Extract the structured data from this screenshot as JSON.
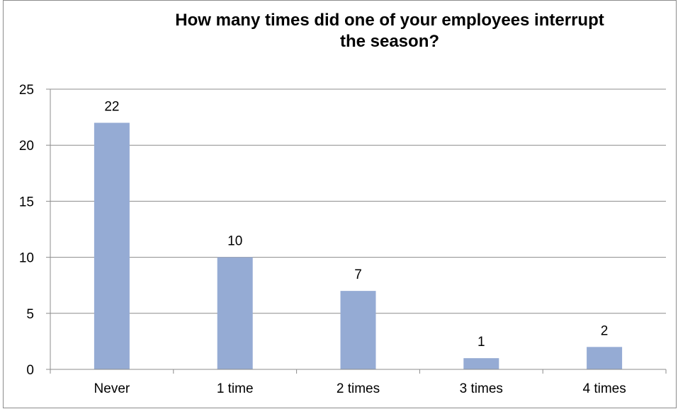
{
  "chart_data": {
    "type": "bar",
    "title": "How many times did one of your employees interrupt the season?",
    "title_lines": [
      "How many times did one of your employees interrupt",
      "the season?"
    ],
    "categories": [
      "Never",
      "1 time",
      "2 times",
      "3 times",
      "4 times"
    ],
    "values": [
      22,
      10,
      7,
      1,
      2
    ],
    "xlabel": "",
    "ylabel": "",
    "ylim": [
      0,
      25
    ],
    "yticks": [
      0,
      5,
      10,
      15,
      20,
      25
    ],
    "grid": true,
    "legend": "none",
    "bar_color": "#95abd4",
    "grid_color": "#8c8c8c"
  }
}
